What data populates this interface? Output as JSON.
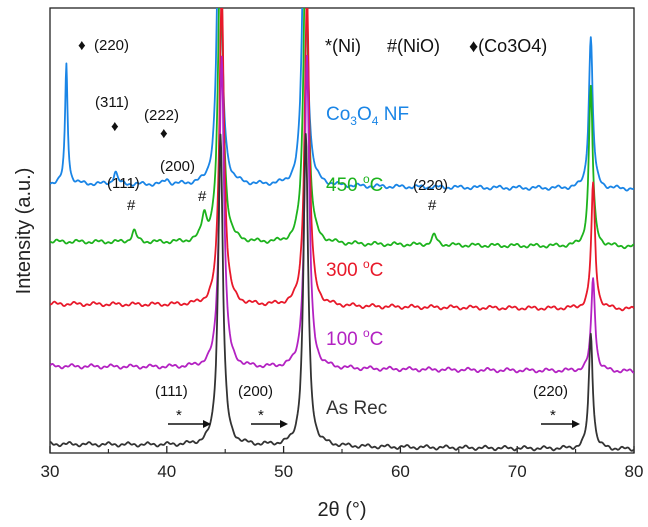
{
  "chart_data": {
    "type": "line",
    "xlabel": "2θ (°)",
    "ylabel": "Intensity (a.u.)",
    "xlim": [
      30,
      80
    ],
    "x_ticks": [
      "30",
      "40",
      "50",
      "60",
      "70",
      "80"
    ],
    "legend": {
      "ni": "*(Ni)",
      "nio": "#(NiO)",
      "co3o4": "♦(Co3O4)"
    },
    "series": [
      {
        "name": "Co3O4 NF",
        "color": "#1a85e6",
        "baseline": 0.605,
        "peaks": [
          [
            31.4,
            0.27,
            0.13
          ],
          [
            35.6,
            0.028,
            0.2
          ],
          [
            40.0,
            0.012,
            0.2
          ],
          [
            44.5,
            0.7,
            0.24
          ],
          [
            51.8,
            0.7,
            0.24
          ],
          [
            76.3,
            0.34,
            0.2
          ]
        ]
      },
      {
        "name": "450 °C",
        "color": "#1db31d",
        "baseline": 0.475,
        "peaks": [
          [
            37.2,
            0.025,
            0.25
          ],
          [
            43.2,
            0.055,
            0.25
          ],
          [
            44.6,
            0.7,
            0.24
          ],
          [
            51.9,
            0.7,
            0.24
          ],
          [
            62.9,
            0.022,
            0.25
          ],
          [
            76.3,
            0.36,
            0.2
          ]
        ]
      },
      {
        "name": "300 °C",
        "color": "#e8192a",
        "baseline": 0.335,
        "peaks": [
          [
            44.7,
            0.7,
            0.24
          ],
          [
            52.0,
            0.7,
            0.24
          ],
          [
            76.5,
            0.28,
            0.2
          ]
        ]
      },
      {
        "name": "100 °C",
        "color": "#b322c2",
        "baseline": 0.195,
        "peaks": [
          [
            44.7,
            0.7,
            0.24
          ],
          [
            52.0,
            0.7,
            0.24
          ],
          [
            76.5,
            0.21,
            0.2
          ]
        ]
      },
      {
        "name": "As Rec",
        "color": "#333333",
        "baseline": 0.02,
        "peaks": [
          [
            44.6,
            0.7,
            0.24
          ],
          [
            51.9,
            0.7,
            0.24
          ],
          [
            76.3,
            0.26,
            0.2
          ]
        ]
      }
    ],
    "series_labels": [
      {
        "name": "Co3O4 NF",
        "main": "Co",
        "sub1": "3",
        "mid": "O",
        "sub2": "4",
        "tail": " NF"
      },
      {
        "name": "450 °C",
        "main": "450 ",
        "sup": "o",
        "tail": "C"
      },
      {
        "name": "300 °C",
        "main": "300 ",
        "sup": "o",
        "tail": "C"
      },
      {
        "name": "100 °C",
        "main": "100 ",
        "sup": "o",
        "tail": "C"
      },
      {
        "name": "As Rec",
        "main": "As Rec"
      }
    ],
    "annotations": {
      "co3o4_220": "(220)",
      "co3o4_311": "(311)",
      "co3o4_222": "(222)",
      "nio_111": "(111)",
      "nio_200": "(200)",
      "nio_220": "(220)",
      "ni_111": "(111)",
      "ni_200": "(200)",
      "ni_220": "(220)",
      "diamond": "♦",
      "hash": "#",
      "star": "*"
    }
  }
}
